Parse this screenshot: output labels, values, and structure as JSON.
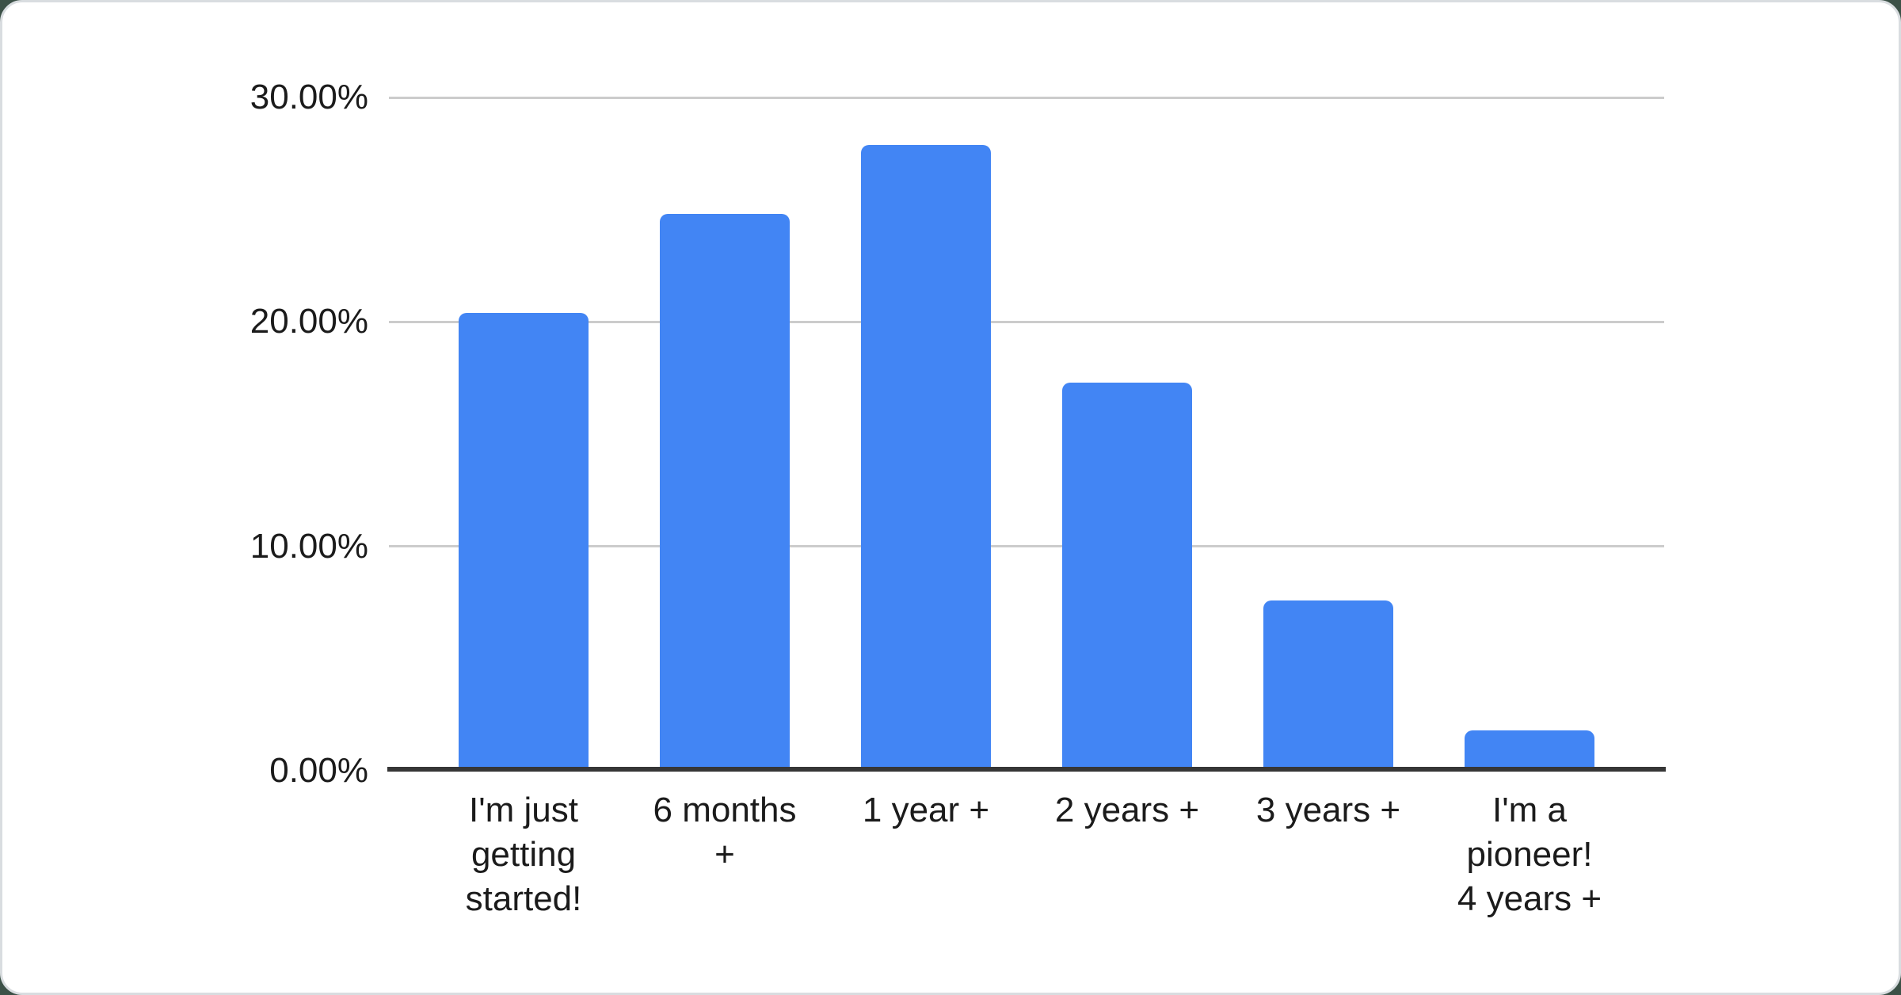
{
  "page": {
    "background_color": "#3c5147",
    "card_background": "#ffffff",
    "card_border_color": "#d9dde0"
  },
  "chart_data": {
    "type": "bar",
    "title": "",
    "xlabel": "",
    "ylabel": "",
    "categories": [
      "I'm just\ngetting\nstarted!",
      "6 months\n+",
      "1 year +",
      "2 years +",
      "3 years +",
      "I'm a\npioneer!\n4 years +"
    ],
    "values": [
      20.4,
      24.8,
      27.9,
      17.3,
      7.6,
      1.8
    ],
    "value_unit": "%",
    "ylim": [
      0,
      30
    ],
    "ytick_values": [
      30,
      20,
      10,
      0
    ],
    "ytick_labels": [
      "30.00%",
      "20.00%",
      "10.00%",
      "0.00%"
    ],
    "grid": true,
    "legend": "none",
    "bar_color": "#4285f4",
    "gridline_color": "#cccccc",
    "axis_line_color": "#363636",
    "label_color": "#1b1b1b"
  }
}
